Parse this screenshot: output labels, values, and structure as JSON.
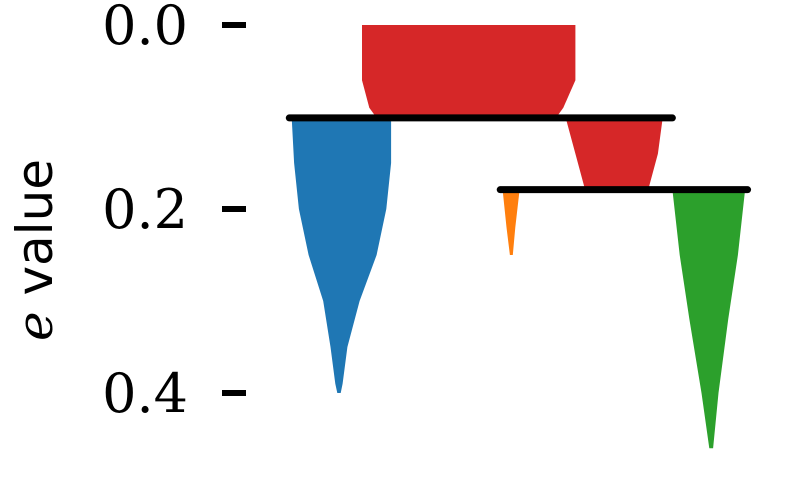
{
  "chart_data": {
    "type": "icicle",
    "ylabel_var": "e",
    "ylabel_text": " value",
    "ylim": [
      0.0,
      0.46
    ],
    "yticks": [
      {
        "value": 0.0,
        "label": "0.0"
      },
      {
        "value": 0.2,
        "label": "0.2"
      },
      {
        "value": 0.4,
        "label": "0.4"
      }
    ],
    "x_domain": [
      0,
      100
    ],
    "grid": false,
    "legend": "none",
    "splits": [
      {
        "name": "split-1",
        "e": 0.101,
        "x_start": 5.0,
        "x_end": 84.0,
        "color": "#000000"
      },
      {
        "name": "split-2",
        "e": 0.179,
        "x_start": 48.5,
        "x_end": 99.5,
        "color": "#000000"
      }
    ],
    "branches": [
      {
        "name": "red-root",
        "color": "#d62728",
        "profile": [
          {
            "e": 0.0,
            "x_left": 20.0,
            "x_right": 64.0
          },
          {
            "e": 0.06,
            "x_left": 20.0,
            "x_right": 64.0
          },
          {
            "e": 0.09,
            "x_left": 21.5,
            "x_right": 61.5
          },
          {
            "e": 0.101,
            "x_left": 23.0,
            "x_right": 60.0
          }
        ]
      },
      {
        "name": "blue-branch",
        "color": "#1f77b4",
        "profile": [
          {
            "e": 0.101,
            "x_left": 5.5,
            "x_right": 26.0
          },
          {
            "e": 0.15,
            "x_left": 6.0,
            "x_right": 26.0
          },
          {
            "e": 0.2,
            "x_left": 7.0,
            "x_right": 25.0
          },
          {
            "e": 0.25,
            "x_left": 9.0,
            "x_right": 23.0
          },
          {
            "e": 0.3,
            "x_left": 12.0,
            "x_right": 19.5
          },
          {
            "e": 0.35,
            "x_left": 13.5,
            "x_right": 17.0
          },
          {
            "e": 0.39,
            "x_left": 14.5,
            "x_right": 16.0
          },
          {
            "e": 0.4,
            "x_left": 14.9,
            "x_right": 15.6
          }
        ]
      },
      {
        "name": "red-right",
        "color": "#d62728",
        "profile": [
          {
            "e": 0.101,
            "x_left": 62.0,
            "x_right": 82.0
          },
          {
            "e": 0.14,
            "x_left": 64.0,
            "x_right": 81.0
          },
          {
            "e": 0.179,
            "x_left": 66.0,
            "x_right": 79.0
          }
        ]
      },
      {
        "name": "orange-branch",
        "color": "#ff7f0e",
        "profile": [
          {
            "e": 0.179,
            "x_left": 49.0,
            "x_right": 52.5
          },
          {
            "e": 0.22,
            "x_left": 49.8,
            "x_right": 51.6
          },
          {
            "e": 0.25,
            "x_left": 50.5,
            "x_right": 51.1
          }
        ]
      },
      {
        "name": "green-branch",
        "color": "#2ca02c",
        "profile": [
          {
            "e": 0.179,
            "x_left": 84.0,
            "x_right": 99.0
          },
          {
            "e": 0.25,
            "x_left": 85.5,
            "x_right": 97.5
          },
          {
            "e": 0.32,
            "x_left": 87.5,
            "x_right": 95.5
          },
          {
            "e": 0.4,
            "x_left": 90.0,
            "x_right": 93.5
          },
          {
            "e": 0.46,
            "x_left": 91.6,
            "x_right": 92.4
          }
        ]
      }
    ]
  }
}
